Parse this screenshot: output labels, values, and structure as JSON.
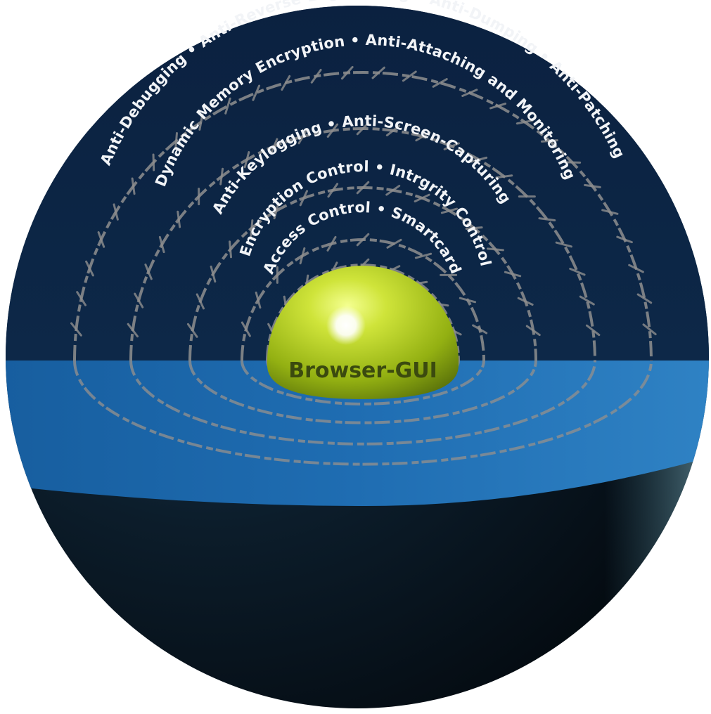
{
  "core": {
    "label": "Browser-GUI"
  },
  "rings": [
    {
      "id": "ring-1",
      "lines": [
        "Access Control • Smartcard"
      ]
    },
    {
      "id": "ring-2",
      "lines": [
        "Encryption Control • Intrgrity Control"
      ]
    },
    {
      "id": "ring-3",
      "lines": [
        "Anti-Keylogging • Anti-Screen-Capturing"
      ]
    },
    {
      "id": "ring-4",
      "lines": [
        "Dynamic Memory Encryption • Anti-Attaching and Monitoring"
      ]
    },
    {
      "id": "ring-5",
      "lines": [
        "Anti-Debugging • Anti-Reverse-Engineering • Anti-Dumping • Anti-Patching"
      ]
    }
  ],
  "colors": {
    "sky": "#0c2440",
    "water": "#1e6cb0",
    "sphere_dark": "#07121c",
    "core": "#b6d21a",
    "wire": "#8f8f8f",
    "text": "#f2f4f7"
  }
}
